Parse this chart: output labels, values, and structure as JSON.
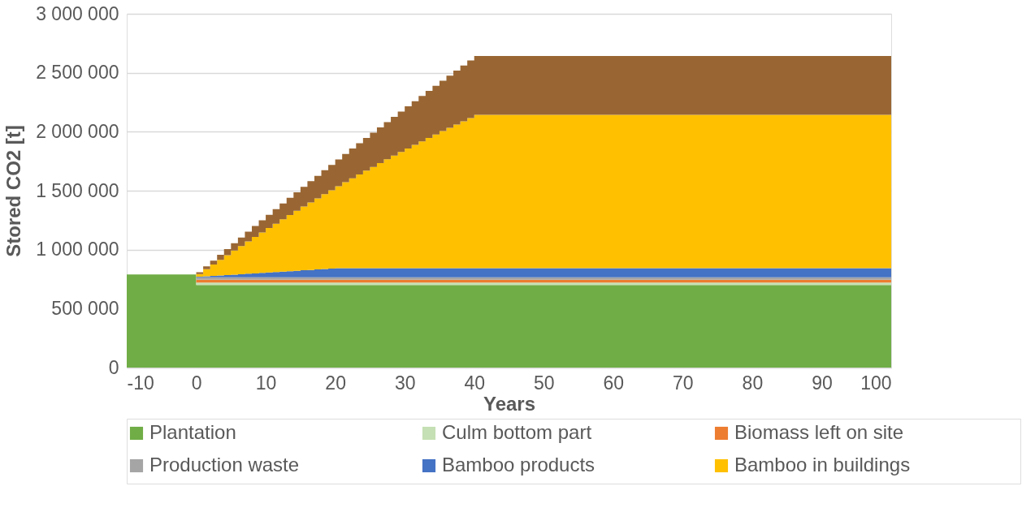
{
  "chart_data": {
    "type": "area",
    "stacked": true,
    "xlabel": "Years",
    "ylabel": "Stored CO2 [t]",
    "x": [
      -10,
      0,
      1,
      2,
      3,
      4,
      5,
      6,
      7,
      8,
      9,
      10,
      11,
      12,
      13,
      14,
      15,
      16,
      17,
      18,
      19,
      20,
      21,
      22,
      23,
      24,
      25,
      26,
      27,
      28,
      29,
      30,
      31,
      32,
      33,
      34,
      35,
      36,
      37,
      38,
      39,
      40,
      100
    ],
    "xlim": [
      -10,
      100
    ],
    "xticks": [
      -10,
      0,
      10,
      20,
      30,
      40,
      50,
      60,
      70,
      80,
      90,
      100
    ],
    "ylim": [
      0,
      3000000
    ],
    "yticks": [
      0,
      {
        "value": 500000,
        "label": "500 000"
      },
      {
        "value": 1000000,
        "label": "1 000 000"
      },
      {
        "value": 1500000,
        "label": "1 500 000"
      },
      {
        "value": 2000000,
        "label": "2 000 000"
      },
      {
        "value": 2500000,
        "label": "2 500 000"
      },
      {
        "value": 3000000,
        "label": "3 000 000"
      }
    ],
    "grid": "y",
    "legend": "bottom",
    "series": [
      {
        "name": "Plantation",
        "color": "#70ad47",
        "values": [
          790000,
          700000,
          700000,
          700000,
          700000,
          700000,
          700000,
          700000,
          700000,
          700000,
          700000,
          700000,
          700000,
          700000,
          700000,
          700000,
          700000,
          700000,
          700000,
          700000,
          700000,
          700000,
          700000,
          700000,
          700000,
          700000,
          700000,
          700000,
          700000,
          700000,
          700000,
          700000,
          700000,
          700000,
          700000,
          700000,
          700000,
          700000,
          700000,
          700000,
          700000,
          700000,
          700000
        ]
      },
      {
        "name": "Culm bottom part",
        "color": "#c5e0b4",
        "values": [
          0,
          20000,
          20000,
          20000,
          20000,
          20000,
          20000,
          20000,
          20000,
          20000,
          20000,
          20000,
          20000,
          20000,
          20000,
          20000,
          20000,
          20000,
          20000,
          20000,
          20000,
          20000,
          20000,
          20000,
          20000,
          20000,
          20000,
          20000,
          20000,
          20000,
          20000,
          20000,
          20000,
          20000,
          20000,
          20000,
          20000,
          20000,
          20000,
          20000,
          20000,
          20000,
          20000
        ]
      },
      {
        "name": "Biomass left on site",
        "color": "#ed7d31",
        "values": [
          0,
          25000,
          25000,
          25000,
          25000,
          25000,
          25000,
          25000,
          25000,
          25000,
          25000,
          25000,
          25000,
          25000,
          25000,
          25000,
          25000,
          25000,
          25000,
          25000,
          25000,
          25000,
          25000,
          25000,
          25000,
          25000,
          25000,
          25000,
          25000,
          25000,
          25000,
          25000,
          25000,
          25000,
          25000,
          25000,
          25000,
          25000,
          25000,
          25000,
          25000,
          25000,
          25000
        ]
      },
      {
        "name": "Production waste",
        "color": "#a5a5a5",
        "values": [
          0,
          20000,
          20000,
          20000,
          20000,
          20000,
          20000,
          20000,
          20000,
          20000,
          20000,
          20000,
          20000,
          20000,
          20000,
          20000,
          20000,
          20000,
          20000,
          20000,
          20000,
          20000,
          20000,
          20000,
          20000,
          20000,
          20000,
          20000,
          20000,
          20000,
          20000,
          20000,
          20000,
          20000,
          20000,
          20000,
          20000,
          20000,
          20000,
          20000,
          20000,
          20000,
          20000
        ]
      },
      {
        "name": "Bamboo products",
        "color": "#4472c4",
        "values": [
          0,
          5000,
          9000,
          12000,
          16000,
          20000,
          23000,
          27000,
          31000,
          34000,
          38000,
          42000,
          45000,
          49000,
          52000,
          56000,
          60000,
          63000,
          67000,
          71000,
          74000,
          78000,
          78000,
          78000,
          78000,
          78000,
          78000,
          78000,
          78000,
          78000,
          78000,
          78000,
          78000,
          78000,
          78000,
          78000,
          78000,
          78000,
          78000,
          78000,
          78000,
          78000,
          78000
        ]
      },
      {
        "name": "Bamboo in buildings",
        "color": "#ffc000",
        "values": [
          0,
          23000,
          60000,
          97000,
          133000,
          168000,
          204000,
          239000,
          274000,
          309000,
          343000,
          376000,
          410000,
          443000,
          476000,
          508000,
          540000,
          572000,
          603000,
          634000,
          665000,
          695000,
          729000,
          762000,
          795000,
          827000,
          859000,
          891000,
          923000,
          954000,
          985000,
          1015000,
          1045000,
          1075000,
          1104000,
          1133000,
          1162000,
          1190000,
          1218000,
          1246000,
          1273000,
          1300000,
          1300000
        ]
      },
      {
        "color": "#996633",
        "values": [
          0,
          15000,
          24000,
          33000,
          42000,
          52000,
          62000,
          72000,
          82000,
          92000,
          102000,
          113000,
          124000,
          135000,
          146000,
          157000,
          168000,
          180000,
          191000,
          203000,
          215000,
          227000,
          239000,
          252000,
          264000,
          277000,
          290000,
          303000,
          316000,
          330000,
          343000,
          357000,
          371000,
          385000,
          399000,
          414000,
          428000,
          443000,
          458000,
          473000,
          488000,
          500000,
          500000
        ]
      }
    ]
  }
}
